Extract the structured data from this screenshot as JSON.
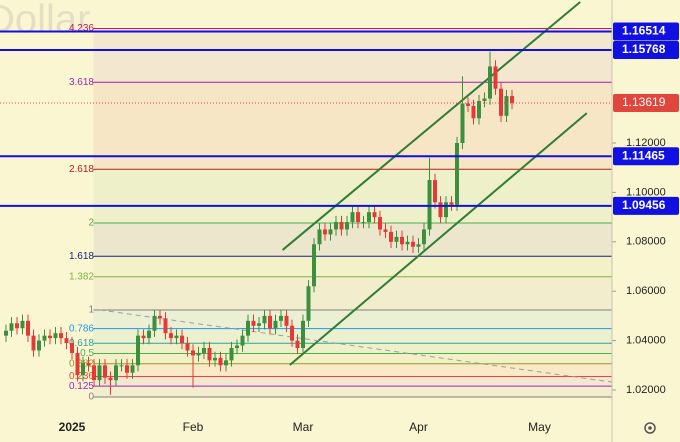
{
  "chart_data": {
    "type": "candlestick",
    "watermark": "Dollar",
    "categories": [
      null,
      null,
      null,
      null,
      null,
      null,
      null,
      null,
      null,
      null,
      null,
      null,
      "2025",
      null,
      null,
      null,
      null,
      null,
      null,
      null,
      null,
      null,
      null,
      null,
      null,
      null,
      null,
      null,
      null,
      null,
      null,
      null,
      null,
      null,
      "Feb",
      null,
      null,
      null,
      null,
      null,
      null,
      null,
      null,
      null,
      null,
      null,
      null,
      null,
      null,
      null,
      null,
      null,
      null,
      null,
      "Mar",
      null,
      null,
      null,
      null,
      null,
      null,
      null,
      null,
      null,
      null,
      null,
      null,
      null,
      null,
      null,
      null,
      null,
      null,
      null,
      null,
      "Apr",
      null,
      null,
      null,
      null,
      null,
      null,
      null,
      null,
      null,
      null,
      null,
      null,
      null,
      null,
      null,
      null,
      null,
      null,
      null,
      null,
      null,
      "May"
    ],
    "open": [
      1.042,
      1.044,
      1.047,
      1.045,
      1.048,
      1.042,
      1.036,
      1.04,
      1.042,
      1.041,
      1.043,
      1.041,
      1.039,
      1.035,
      1.026,
      1.031,
      1.03,
      1.024,
      1.03,
      1.025,
      1.024,
      1.03,
      1.03,
      1.027,
      1.03,
      1.042,
      1.041,
      1.044,
      1.05,
      1.049,
      1.043,
      1.041,
      1.042,
      1.039,
      1.036,
      1.034,
      1.035,
      1.037,
      1.032,
      1.033,
      1.03,
      1.032,
      1.037,
      1.038,
      1.042,
      1.048,
      1.046,
      1.047,
      1.05,
      1.045,
      1.048,
      1.05,
      1.046,
      1.04,
      1.037,
      1.048,
      1.062,
      1.079,
      1.085,
      1.083,
      1.085,
      1.088,
      1.085,
      1.088,
      1.092,
      1.088,
      1.088,
      1.092,
      1.09,
      1.085,
      1.084,
      1.08,
      1.082,
      1.079,
      1.08,
      1.078,
      1.079,
      1.085,
      1.105,
      1.096,
      1.09,
      1.096,
      1.095,
      1.12,
      1.136,
      1.135,
      1.13,
      1.137,
      1.138,
      1.151,
      1.142,
      1.131,
      1.139,
      null,
      null,
      null,
      null,
      null
    ],
    "high": [
      1.0465,
      1.0495,
      1.0495,
      1.0505,
      1.0505,
      1.0445,
      1.0425,
      1.0445,
      1.0445,
      1.0455,
      1.0455,
      1.0435,
      1.0415,
      1.0375,
      1.0335,
      1.0335,
      1.0325,
      1.0325,
      1.0325,
      1.0275,
      1.0325,
      1.0325,
      1.0325,
      1.0325,
      1.0445,
      1.0445,
      1.0465,
      1.0525,
      1.0525,
      1.0515,
      1.0455,
      1.0445,
      1.0445,
      1.0415,
      1.0385,
      1.0375,
      1.0395,
      1.0395,
      1.0355,
      1.0355,
      1.0345,
      1.0395,
      1.0405,
      1.0445,
      1.0505,
      1.0505,
      1.0495,
      1.0525,
      1.0525,
      1.0505,
      1.0525,
      1.0525,
      1.0485,
      1.0425,
      1.0505,
      1.0645,
      1.0815,
      1.0875,
      1.0875,
      1.0875,
      1.0905,
      1.0905,
      1.0905,
      1.0945,
      1.0945,
      1.0905,
      1.0945,
      1.0945,
      1.0925,
      1.0875,
      1.0865,
      1.0845,
      1.0845,
      1.0825,
      1.0825,
      1.0815,
      1.0875,
      1.114,
      1.1075,
      1.0985,
      1.0985,
      1.0985,
      1.1225,
      1.147,
      1.1385,
      1.1375,
      1.1395,
      1.1405,
      1.157,
      1.1535,
      1.1445,
      1.1415,
      1.1415,
      null,
      null,
      null,
      null,
      null
    ],
    "low": [
      1.0395,
      1.0415,
      1.0425,
      1.0425,
      1.0395,
      1.0335,
      1.0335,
      1.0375,
      1.0385,
      1.0385,
      1.0385,
      1.0365,
      1.0325,
      1.0235,
      1.0235,
      1.0275,
      1.0215,
      1.0215,
      1.0225,
      1.018,
      1.0215,
      1.0275,
      1.0245,
      1.0245,
      1.0275,
      1.0385,
      1.0385,
      1.0415,
      1.0465,
      1.0405,
      1.0385,
      1.0385,
      1.0365,
      1.0335,
      1.021,
      1.0315,
      1.0325,
      1.0295,
      1.0295,
      1.0275,
      1.0275,
      1.0295,
      1.0345,
      1.0355,
      1.0395,
      1.0435,
      1.0435,
      1.0445,
      1.0425,
      1.0425,
      1.0455,
      1.0435,
      1.0375,
      1.0345,
      1.0345,
      1.0455,
      1.0595,
      1.0765,
      1.0805,
      1.0805,
      1.0825,
      1.0825,
      1.0825,
      1.0855,
      1.0855,
      1.0855,
      1.0855,
      1.0875,
      1.0825,
      1.0815,
      1.0775,
      1.0775,
      1.0765,
      1.0765,
      1.0755,
      1.0755,
      1.0765,
      1.0825,
      1.0935,
      1.0875,
      1.0875,
      1.0925,
      1.0925,
      1.1175,
      1.1325,
      1.1275,
      1.1275,
      1.1345,
      1.1355,
      1.1395,
      1.1285,
      1.1285,
      1.1337,
      null,
      null,
      null,
      null,
      null
    ],
    "close": [
      1.044,
      1.047,
      1.045,
      1.048,
      1.042,
      1.036,
      1.04,
      1.042,
      1.041,
      1.043,
      1.041,
      1.039,
      1.035,
      1.026,
      1.031,
      1.03,
      1.024,
      1.03,
      1.025,
      1.024,
      1.03,
      1.03,
      1.027,
      1.03,
      1.042,
      1.041,
      1.044,
      1.05,
      1.049,
      1.043,
      1.041,
      1.042,
      1.039,
      1.036,
      1.034,
      1.035,
      1.037,
      1.032,
      1.033,
      1.03,
      1.032,
      1.037,
      1.038,
      1.042,
      1.048,
      1.046,
      1.047,
      1.05,
      1.045,
      1.048,
      1.05,
      1.046,
      1.04,
      1.037,
      1.048,
      1.062,
      1.079,
      1.085,
      1.083,
      1.085,
      1.088,
      1.085,
      1.088,
      1.092,
      1.088,
      1.088,
      1.092,
      1.09,
      1.085,
      1.084,
      1.08,
      1.082,
      1.079,
      1.08,
      1.078,
      1.079,
      1.085,
      1.105,
      1.096,
      1.09,
      1.096,
      1.095,
      1.12,
      1.136,
      1.135,
      1.13,
      1.137,
      1.138,
      1.151,
      1.142,
      1.131,
      1.139,
      1.13619,
      null,
      null,
      null,
      null,
      null
    ],
    "up_color": "#3c8f3c",
    "down_color": "#e53935",
    "ylim": [
      1.0119,
      1.1779
    ],
    "yticks": [
      {
        "value": 1.02,
        "label": "1.02000"
      },
      {
        "value": 1.04,
        "label": "1.04000"
      },
      {
        "value": 1.06,
        "label": "1.06000"
      },
      {
        "value": 1.08,
        "label": "1.08000"
      },
      {
        "value": 1.1,
        "label": "1.10000"
      },
      {
        "value": 1.12,
        "label": "1.12000"
      }
    ],
    "price_lines": [
      {
        "value": 1.16514,
        "color": "#1010e0"
      },
      {
        "value": 1.15768,
        "color": "#1010e0"
      },
      {
        "value": 1.11465,
        "color": "#1010e0"
      },
      {
        "value": 1.09456,
        "color": "#1010e0"
      }
    ],
    "last_price": {
      "value": 1.13619,
      "color": "#e0463c"
    },
    "fib_range": [
      1.01717,
      1.05239
    ],
    "fib_start": 17,
    "fib_levels": [
      {
        "level": 4.236,
        "color": "#c2185b"
      },
      {
        "level": 3.618,
        "color": "#9c27b0"
      },
      {
        "level": 2.618,
        "color": "#b71c1c"
      },
      {
        "level": 2,
        "color": "#4caf50"
      },
      {
        "level": 1.618,
        "color": "#1a237e"
      },
      {
        "level": 1.382,
        "color": "#7cb342"
      },
      {
        "level": 1,
        "color": "#808080"
      },
      {
        "level": 0.786,
        "color": "#2196f3"
      },
      {
        "level": 0.618,
        "color": "#26a69a"
      },
      {
        "level": 0.5,
        "color": "#4caf50"
      },
      {
        "level": 0.382,
        "color": "#8d9b2a"
      },
      {
        "level": 0.236,
        "color": "#f44336"
      },
      {
        "level": 0.125,
        "color": "#9c27b0"
      },
      {
        "level": 0,
        "color": "#808080"
      }
    ],
    "trend_lines": [
      {
        "x": [
          50.3,
          104.4
        ],
        "y": [
          1.0767,
          1.1771
        ],
        "color": "#2e7d32",
        "style": "solid"
      },
      {
        "x": [
          51.6,
          105.6
        ],
        "y": [
          1.0301,
          1.1321
        ],
        "color": "#2e7d32",
        "style": "solid"
      },
      {
        "x": [
          17.1,
          110.2
        ],
        "y": [
          1.0524,
          1.0232
        ],
        "color": "#9e9e9e",
        "style": "dashed"
      }
    ]
  }
}
